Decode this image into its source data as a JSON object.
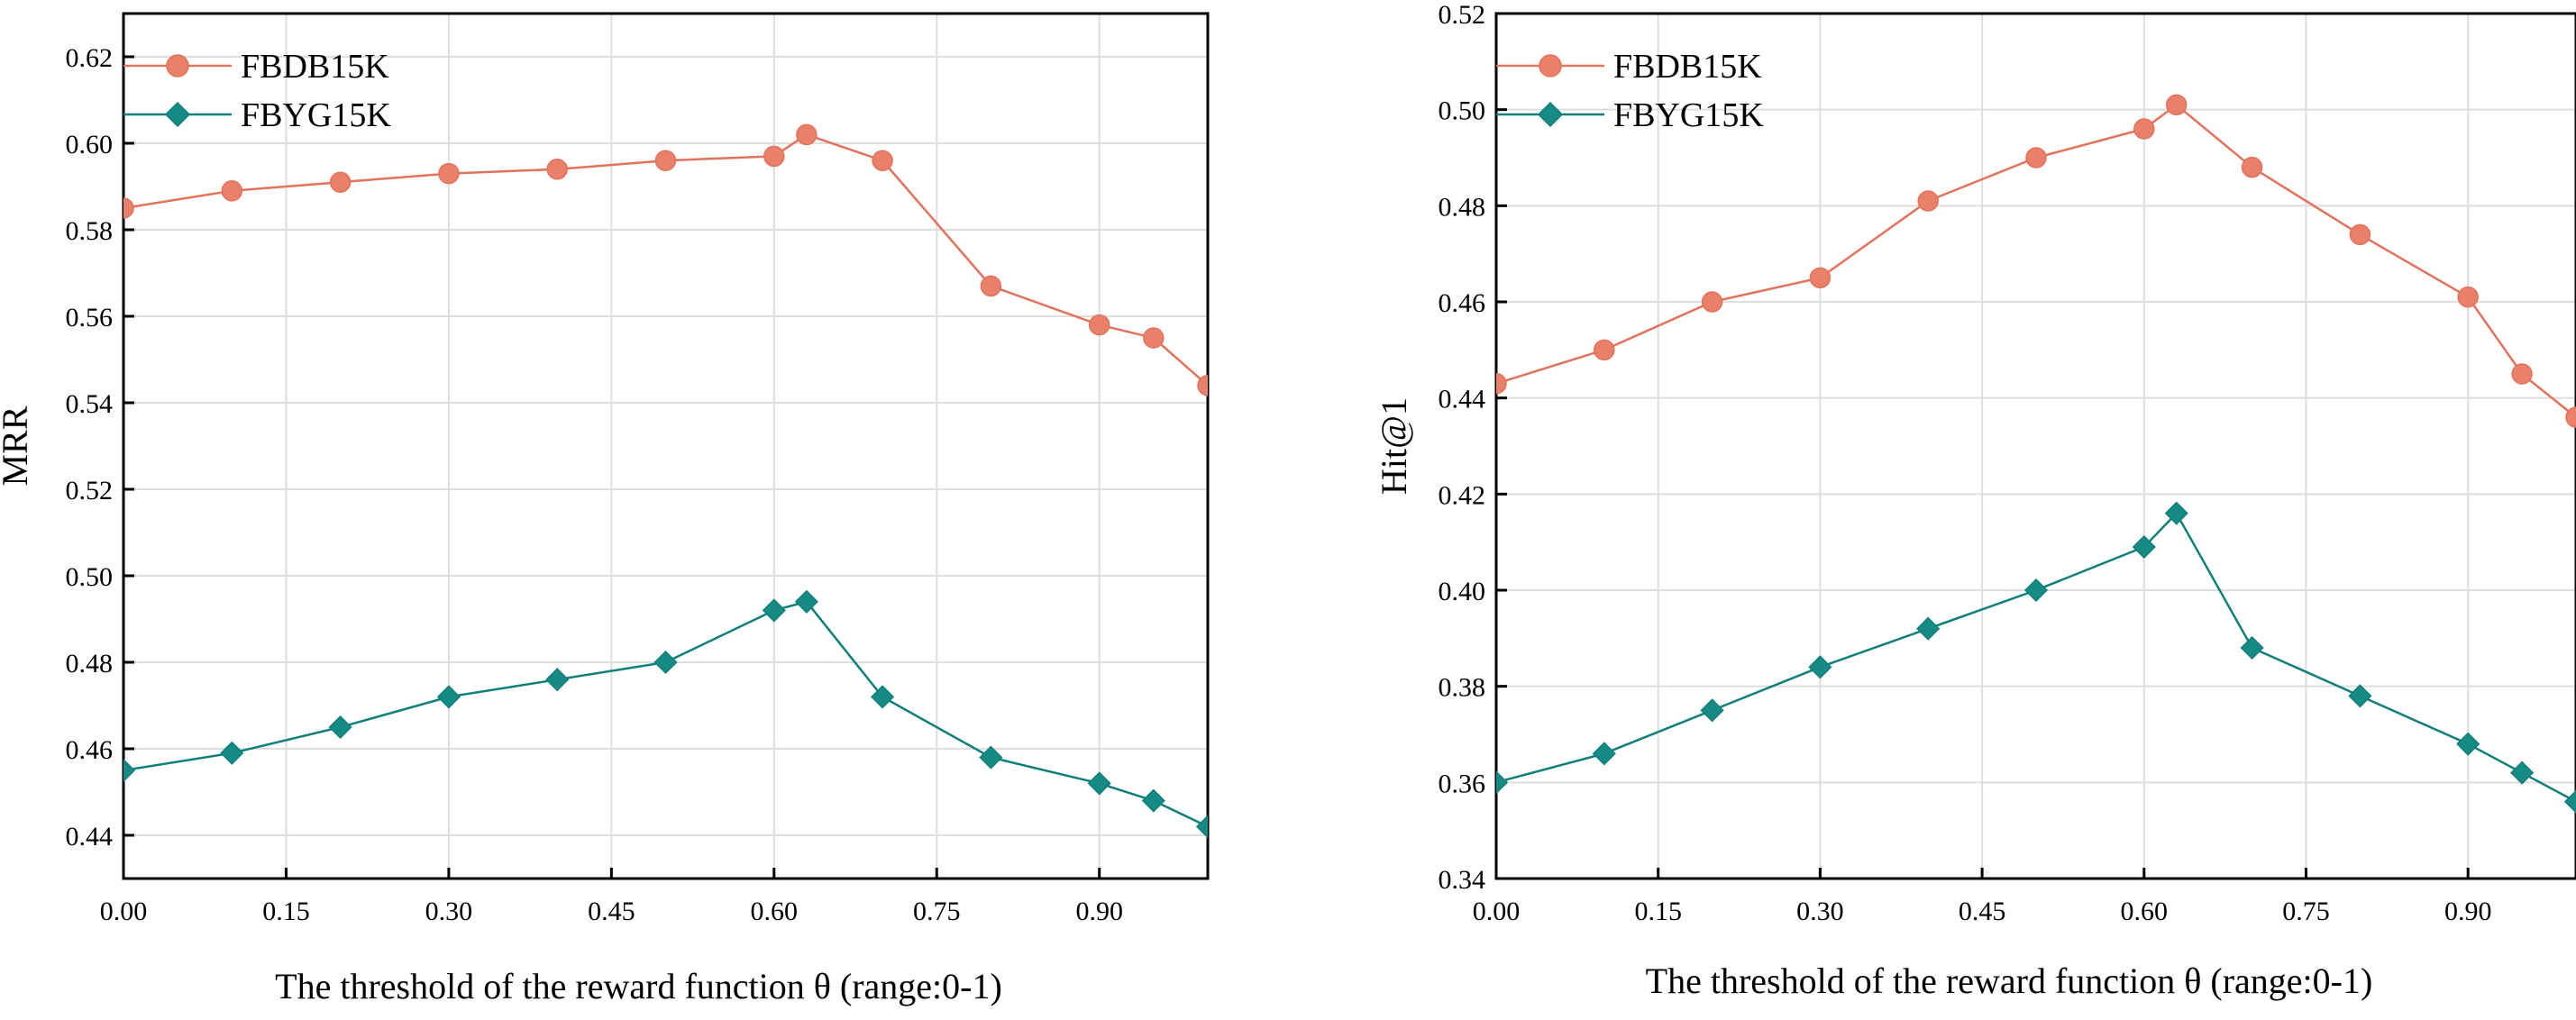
{
  "colors": {
    "fbdb15k": "#e2725b",
    "fbdb15k_fill": "#e8806a",
    "fbyg15k": "#0f7f7a",
    "fbyg15k_fill": "#168a84",
    "grid": "#dedede",
    "axis": "#000000"
  },
  "chart_data": [
    {
      "type": "line",
      "title": "",
      "xlabel": "The threshold of the reward function θ (range:0-1)",
      "ylabel": "MRR",
      "xlim": [
        0,
        1
      ],
      "ylim": [
        0.43,
        0.63
      ],
      "xticks": [
        "0.00",
        "0.15",
        "0.30",
        "0.45",
        "0.60",
        "0.75",
        "0.90"
      ],
      "yticks": [
        "0.44",
        "0.46",
        "0.48",
        "0.50",
        "0.52",
        "0.54",
        "0.56",
        "0.58",
        "0.60",
        "0.62"
      ],
      "grid": true,
      "legend_position": "top-left",
      "x": [
        0.0,
        0.1,
        0.2,
        0.3,
        0.4,
        0.5,
        0.6,
        0.63,
        0.7,
        0.8,
        0.9,
        0.95,
        1.0
      ],
      "series": [
        {
          "name": "FBDB15K",
          "marker": "circle",
          "values": [
            0.585,
            0.589,
            0.591,
            0.593,
            0.594,
            0.596,
            0.597,
            0.602,
            0.596,
            0.567,
            0.558,
            0.555,
            0.544
          ]
        },
        {
          "name": "FBYG15K",
          "marker": "diamond",
          "values": [
            0.455,
            0.459,
            0.465,
            0.472,
            0.476,
            0.48,
            0.492,
            0.494,
            0.472,
            0.458,
            0.452,
            0.448,
            0.442
          ]
        }
      ]
    },
    {
      "type": "line",
      "title": "",
      "xlabel": "The threshold of the reward function θ (range:0-1)",
      "ylabel": "Hit@1",
      "xlim": [
        0,
        1
      ],
      "ylim": [
        0.34,
        0.52
      ],
      "xticks": [
        "0.00",
        "0.15",
        "0.30",
        "0.45",
        "0.60",
        "0.75",
        "0.90"
      ],
      "yticks": [
        "0.34",
        "0.36",
        "0.38",
        "0.40",
        "0.42",
        "0.44",
        "0.46",
        "0.48",
        "0.50",
        "0.52"
      ],
      "grid": true,
      "legend_position": "top-left",
      "x": [
        0.0,
        0.1,
        0.2,
        0.3,
        0.4,
        0.5,
        0.6,
        0.63,
        0.7,
        0.8,
        0.9,
        0.95,
        1.0
      ],
      "series": [
        {
          "name": "FBDB15K",
          "marker": "circle",
          "values": [
            0.443,
            0.45,
            0.46,
            0.465,
            0.481,
            0.49,
            0.496,
            0.501,
            0.488,
            0.474,
            0.461,
            0.445,
            0.436
          ]
        },
        {
          "name": "FBYG15K",
          "marker": "diamond",
          "values": [
            0.36,
            0.366,
            0.375,
            0.384,
            0.392,
            0.4,
            0.409,
            0.416,
            0.388,
            0.378,
            0.368,
            0.362,
            0.356
          ]
        }
      ]
    }
  ]
}
